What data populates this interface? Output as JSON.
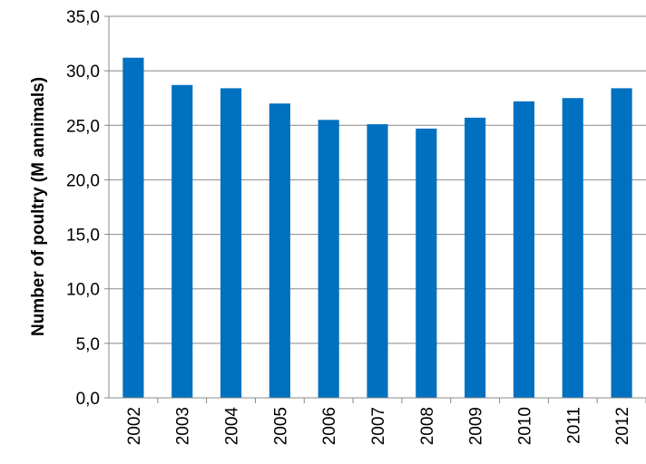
{
  "chart_data": {
    "type": "bar",
    "title": "",
    "xlabel": "",
    "ylabel": "Number of poultry (M annimals)",
    "categories": [
      "2002",
      "2003",
      "2004",
      "2005",
      "2006",
      "2007",
      "2008",
      "2009",
      "2010",
      "2011",
      "2012"
    ],
    "values": [
      31.2,
      28.7,
      28.4,
      27.0,
      25.5,
      25.1,
      24.7,
      25.7,
      27.2,
      27.5,
      28.4
    ],
    "ylim": [
      0,
      35
    ],
    "yticks": [
      "0,0",
      "5,0",
      "10,0",
      "15,0",
      "20,0",
      "25,0",
      "30,0",
      "35,0"
    ],
    "grid": true,
    "legend": "none",
    "colors": {
      "bar": "#0070C0",
      "grid": "#888888",
      "axis": "#888888"
    }
  }
}
